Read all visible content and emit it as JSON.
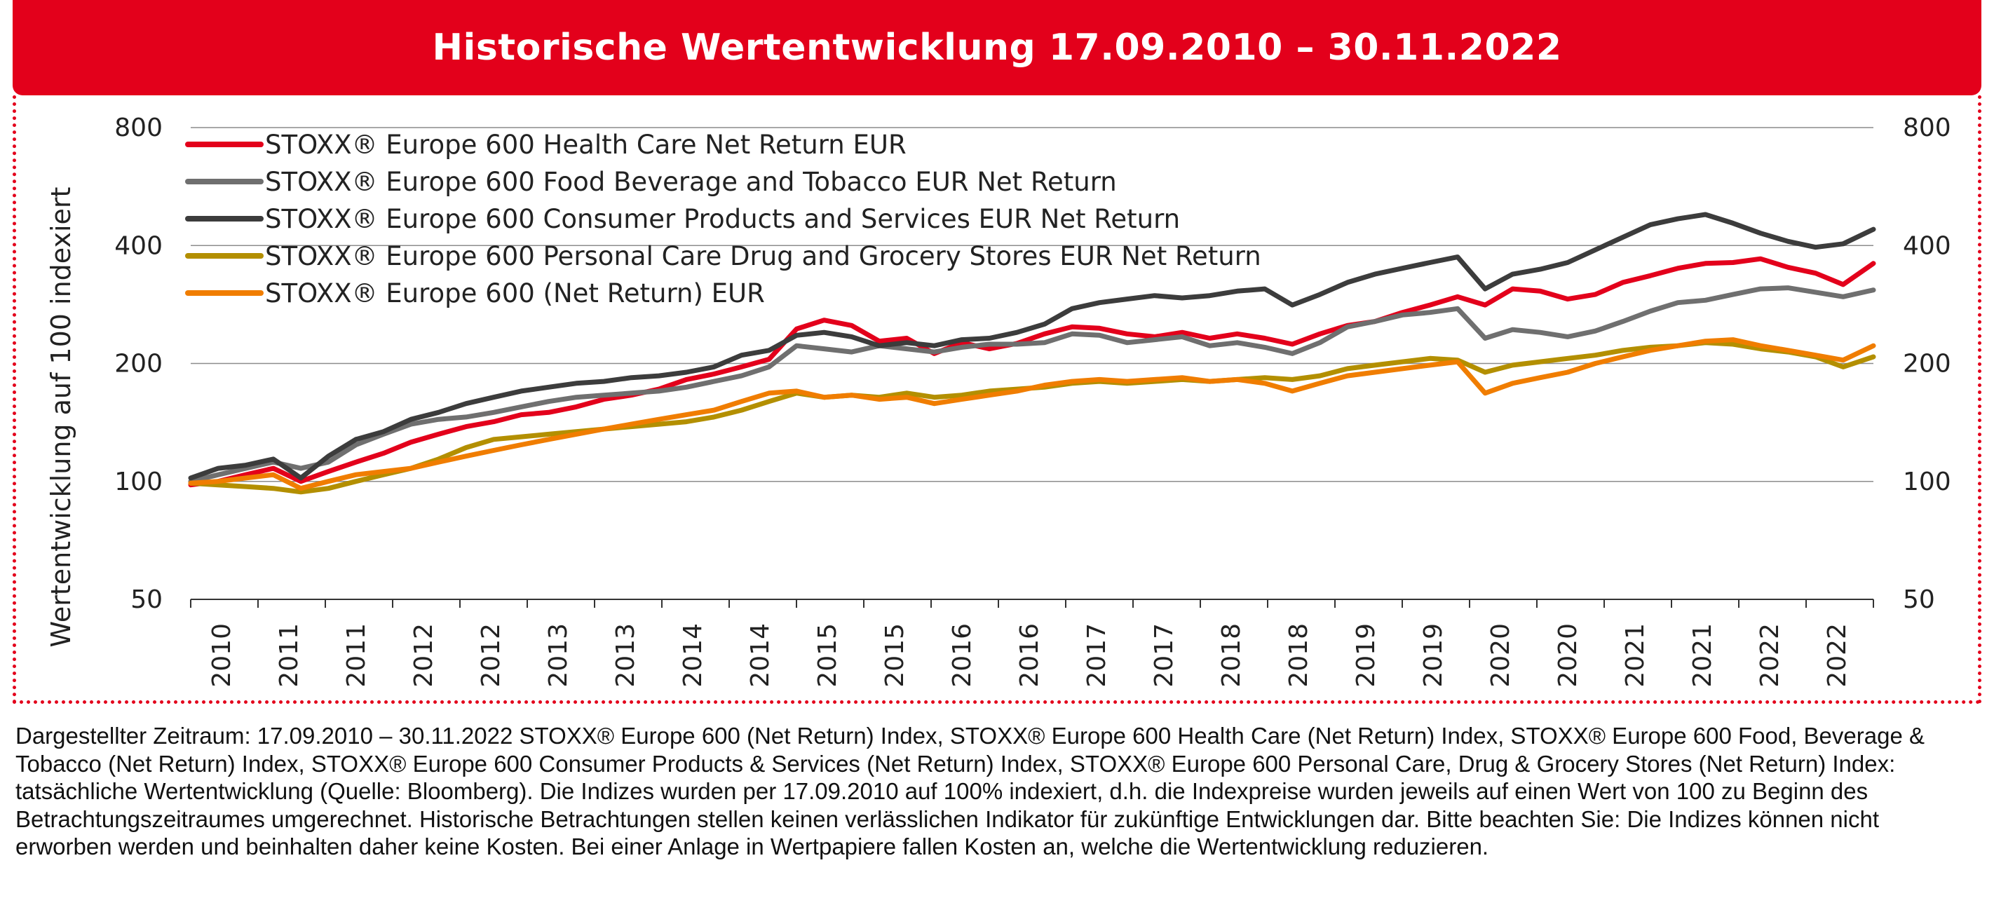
{
  "header": {
    "title": "Historische Wertentwicklung 17.09.2010 – 30.11.2022"
  },
  "footnote": "Dargestellter Zeitraum: 17.09.2010 – 30.11.2022 STOXX® Europe 600 (Net Return) Index, STOXX® Europe 600 Health Care (Net Return) Index, STOXX® Europe 600 Food, Beverage & Tobacco (Net Return) Index, STOXX® Europe 600 Consumer Products & Services (Net Return) Index, STOXX® Europe 600 Personal Care, Drug & Grocery Stores (Net Return) Index: tatsächliche Wertentwicklung (Quelle: Bloomberg). Die Indizes wurden per 17.09.2010 auf 100% indexiert, d.h. die Indexpreise wurden jeweils auf einen Wert von 100 zu Beginn des Betrachtungszeitraumes umgerechnet. Historische Betrachtungen stellen keinen verlässlichen Indikator für zukünftige Entwicklungen dar. Bitte beachten Sie: Die Indizes können nicht erworben werden und beinhalten daher keine Kosten. Bei einer Anlage in Wertpapiere fallen Kosten an, welche die Wertentwicklung reduzieren.",
  "chart_data": {
    "type": "line",
    "title": "Historische Wertentwicklung 17.09.2010 – 30.11.2022",
    "ylabel": "Wertentwicklung auf 100 indexiert",
    "xlabel": "",
    "y_scale": "log",
    "ylim": [
      50,
      800
    ],
    "y_ticks": [
      50,
      100,
      200,
      400,
      800
    ],
    "x_range": [
      2010.7,
      2022.92
    ],
    "x_tick_labels": [
      "2010",
      "2011",
      "2011",
      "2012",
      "2012",
      "2013",
      "2013",
      "2014",
      "2014",
      "2015",
      "2015",
      "2016",
      "2016",
      "2017",
      "2017",
      "2018",
      "2018",
      "2019",
      "2019",
      "2020",
      "2020",
      "2021",
      "2021",
      "2022",
      "2022"
    ],
    "grid": "horizontal",
    "legend_position": "top-left",
    "x": [
      2010.7,
      2010.9,
      2011.1,
      2011.3,
      2011.5,
      2011.7,
      2011.9,
      2012.1,
      2012.3,
      2012.5,
      2012.7,
      2012.9,
      2013.1,
      2013.3,
      2013.5,
      2013.7,
      2013.9,
      2014.1,
      2014.3,
      2014.5,
      2014.7,
      2014.9,
      2015.1,
      2015.3,
      2015.5,
      2015.7,
      2015.9,
      2016.1,
      2016.3,
      2016.5,
      2016.7,
      2016.9,
      2017.1,
      2017.3,
      2017.5,
      2017.7,
      2017.9,
      2018.1,
      2018.3,
      2018.5,
      2018.7,
      2018.9,
      2019.1,
      2019.3,
      2019.5,
      2019.7,
      2019.9,
      2020.1,
      2020.3,
      2020.5,
      2020.7,
      2020.9,
      2021.1,
      2021.3,
      2021.5,
      2021.7,
      2021.9,
      2022.1,
      2022.3,
      2022.5,
      2022.7,
      2022.92
    ],
    "series": [
      {
        "name": "STOXX® Europe 600 Health Care Net Return EUR",
        "color": "#e3001b",
        "values": [
          98,
          100,
          104,
          108,
          100,
          106,
          112,
          118,
          126,
          132,
          138,
          142,
          148,
          150,
          155,
          162,
          166,
          172,
          182,
          188,
          196,
          205,
          245,
          258,
          250,
          228,
          232,
          212,
          226,
          218,
          225,
          238,
          248,
          246,
          238,
          234,
          240,
          232,
          238,
          232,
          224,
          238,
          250,
          256,
          270,
          282,
          296,
          282,
          310,
          306,
          292,
          300,
          322,
          335,
          350,
          360,
          362,
          370,
          352,
          340,
          318,
          360
        ]
      },
      {
        "name": "STOXX® Europe 600 Food Beverage and Tobacco EUR Net Return",
        "color": "#6f6f6f",
        "values": [
          100,
          104,
          108,
          112,
          108,
          112,
          124,
          132,
          140,
          144,
          146,
          150,
          155,
          160,
          164,
          166,
          168,
          170,
          174,
          180,
          186,
          196,
          222,
          218,
          214,
          222,
          218,
          214,
          220,
          224,
          224,
          226,
          238,
          236,
          226,
          230,
          234,
          222,
          226,
          220,
          212,
          226,
          248,
          256,
          266,
          270,
          276,
          232,
          244,
          240,
          234,
          242,
          256,
          272,
          286,
          290,
          300,
          310,
          312,
          304,
          296,
          308
        ]
      },
      {
        "name": "STOXX® Europe 600 Consumer Products and Services EUR Net Return",
        "color": "#3c3c3c",
        "values": [
          102,
          108,
          110,
          114,
          102,
          116,
          128,
          134,
          144,
          150,
          158,
          164,
          170,
          174,
          178,
          180,
          184,
          186,
          190,
          196,
          210,
          216,
          236,
          240,
          234,
          222,
          226,
          222,
          230,
          232,
          240,
          252,
          276,
          286,
          292,
          298,
          294,
          298,
          306,
          310,
          282,
          300,
          322,
          338,
          350,
          362,
          374,
          310,
          338,
          348,
          362,
          390,
          420,
          452,
          468,
          480,
          456,
          430,
          410,
          396,
          404,
          440
        ]
      },
      {
        "name": "STOXX® Europe 600 Personal Care Drug and Grocery Stores EUR Net Return",
        "color": "#b38f00",
        "values": [
          99,
          98,
          97,
          96,
          94,
          96,
          100,
          104,
          108,
          114,
          122,
          128,
          130,
          132,
          134,
          136,
          138,
          140,
          142,
          146,
          152,
          160,
          168,
          164,
          166,
          164,
          168,
          164,
          166,
          170,
          172,
          174,
          178,
          180,
          178,
          180,
          182,
          180,
          182,
          184,
          182,
          186,
          194,
          198,
          202,
          206,
          204,
          190,
          198,
          202,
          206,
          210,
          216,
          220,
          222,
          226,
          224,
          218,
          214,
          208,
          196,
          208
        ]
      },
      {
        "name": "STOXX® Europe 600 (Net Return) EUR",
        "color": "#f07d00",
        "values": [
          99,
          100,
          102,
          104,
          96,
          100,
          104,
          106,
          108,
          112,
          116,
          120,
          124,
          128,
          132,
          136,
          140,
          144,
          148,
          152,
          160,
          168,
          170,
          164,
          166,
          162,
          164,
          158,
          162,
          166,
          170,
          176,
          180,
          182,
          180,
          182,
          184,
          180,
          182,
          178,
          170,
          178,
          186,
          190,
          194,
          198,
          202,
          168,
          178,
          184,
          190,
          200,
          208,
          216,
          222,
          228,
          230,
          222,
          216,
          210,
          204,
          222
        ]
      }
    ]
  }
}
